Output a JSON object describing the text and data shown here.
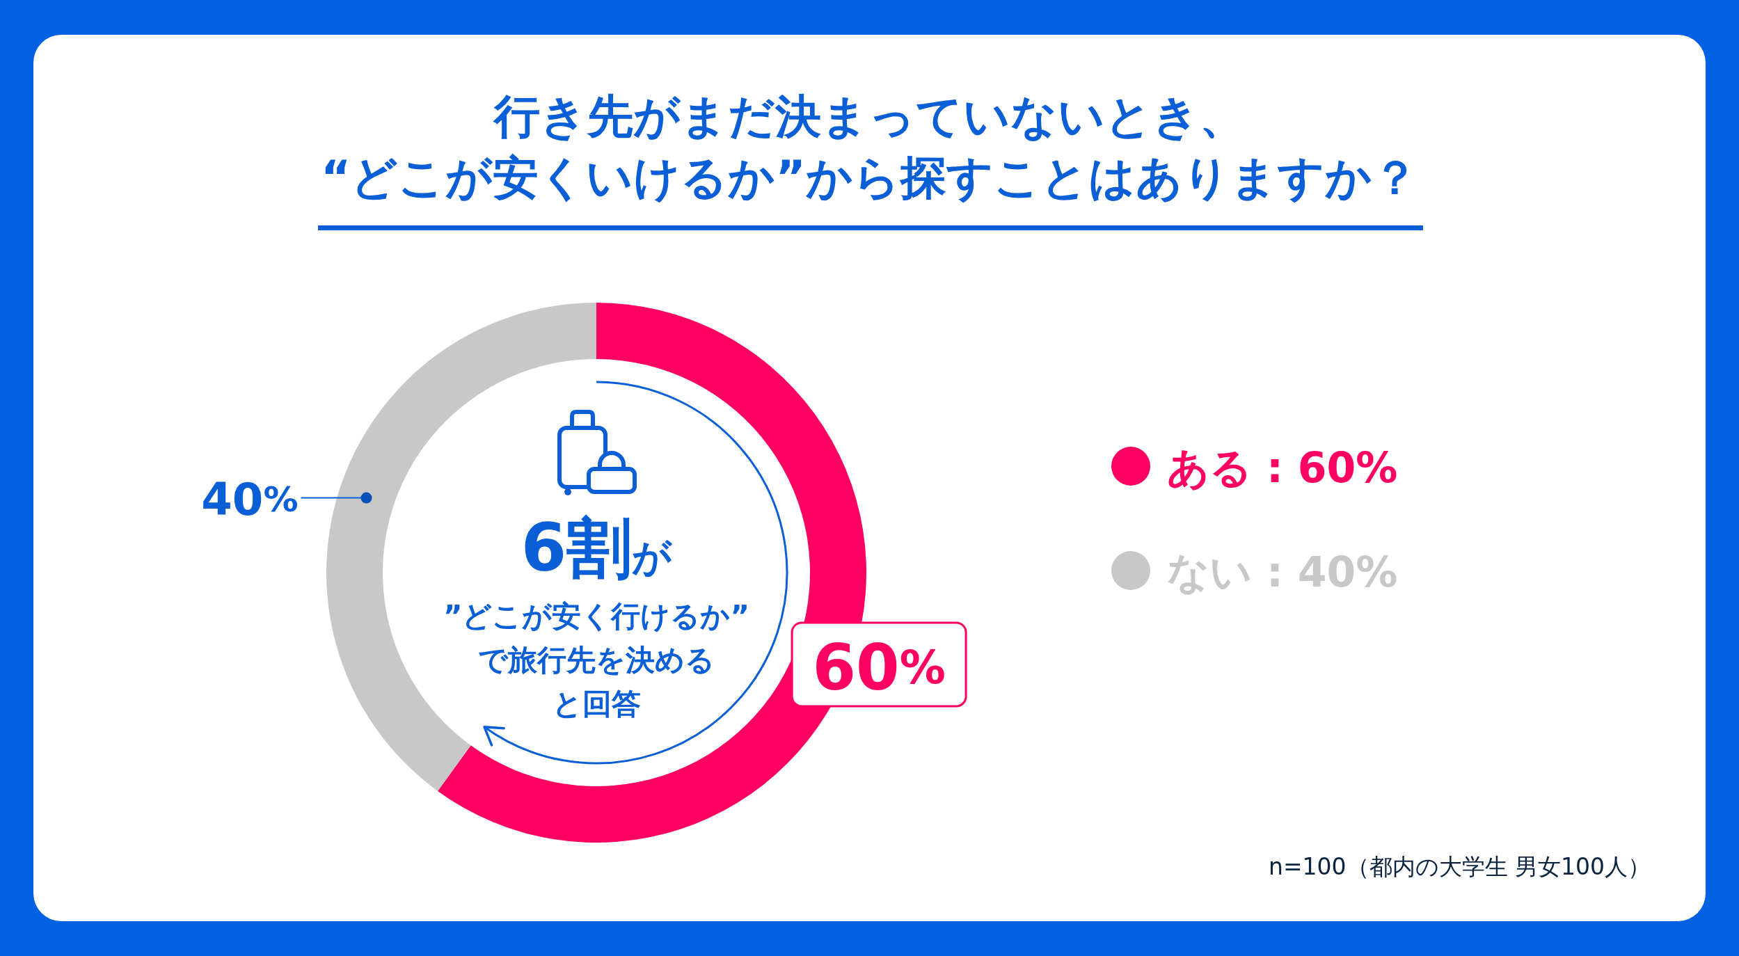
{
  "chart_data": {
    "type": "donut",
    "title": "行き先がまだ決まっていないとき、\n“どこが安くいけるか”から探すことはありますか？",
    "categories": [
      "ある",
      "ない"
    ],
    "values": [
      60,
      40
    ],
    "colors": [
      "#ff0062",
      "#c8c8c8"
    ],
    "value_labels": [
      "60%",
      "40%"
    ],
    "legend": "right",
    "annotations": [
      "6割が",
      "”どこが安く行けるか”",
      "で旅行先を決める",
      "と回答",
      "n=100（都内の大学生 男女100人）"
    ]
  }
}
